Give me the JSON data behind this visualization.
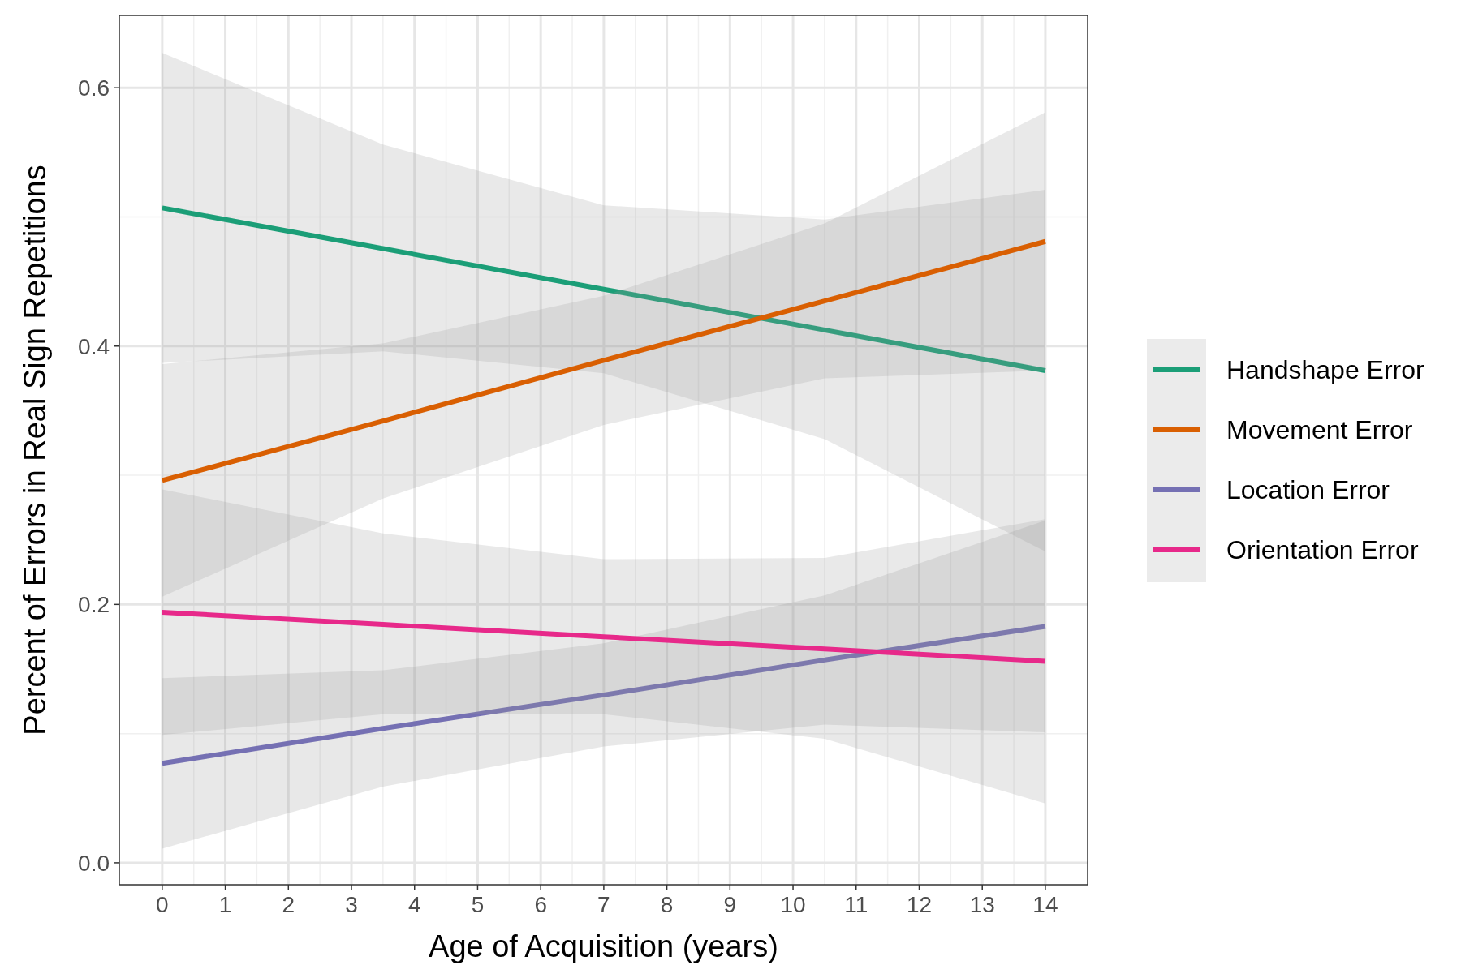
{
  "chart_data": {
    "type": "line",
    "xlabel": "Age of Acquisition (years)",
    "ylabel": "Percent of Errors in Real Sign Repetitions",
    "xlim": [
      -0.68,
      14.67
    ],
    "xticks": [
      0,
      1,
      2,
      3,
      4,
      5,
      6,
      7,
      8,
      9,
      10,
      11,
      12,
      13,
      14
    ],
    "ylim": [
      -0.017,
      0.656
    ],
    "yticks": [
      {
        "value": 0,
        "label": "0.0"
      },
      0.2,
      0.4,
      0.6
    ],
    "grid": true,
    "legend": "right",
    "x": [
      0,
      3.5,
      7,
      10.5,
      14
    ],
    "series": [
      {
        "name": "Handshape Error",
        "color": "#1b9e77",
        "values": [
          0.507,
          0.4755,
          0.444,
          0.4125,
          0.381
        ],
        "lower": [
          0.387,
          0.396,
          0.379,
          0.328,
          0.241
        ],
        "upper": [
          0.627,
          0.556,
          0.509,
          0.498,
          0.521
        ]
      },
      {
        "name": "Movement Error",
        "color": "#d95f02",
        "values": [
          0.296,
          0.342,
          0.389,
          0.435,
          0.481
        ],
        "lower": [
          0.206,
          0.282,
          0.339,
          0.375,
          0.381
        ],
        "upper": [
          0.386,
          0.402,
          0.439,
          0.495,
          0.581
        ]
      },
      {
        "name": "Location Error",
        "color": "#7570b3",
        "values": [
          0.077,
          0.104,
          0.13,
          0.157,
          0.183
        ],
        "lower": [
          0.011,
          0.059,
          0.09,
          0.107,
          0.101
        ],
        "upper": [
          0.143,
          0.149,
          0.17,
          0.207,
          0.265
        ]
      },
      {
        "name": "Orientation Error",
        "color": "#e7298a",
        "values": [
          0.194,
          0.1845,
          0.175,
          0.1655,
          0.156
        ],
        "lower": [
          0.099,
          0.115,
          0.115,
          0.096,
          0.046
        ],
        "upper": [
          0.289,
          0.255,
          0.235,
          0.236,
          0.266
        ]
      }
    ]
  }
}
